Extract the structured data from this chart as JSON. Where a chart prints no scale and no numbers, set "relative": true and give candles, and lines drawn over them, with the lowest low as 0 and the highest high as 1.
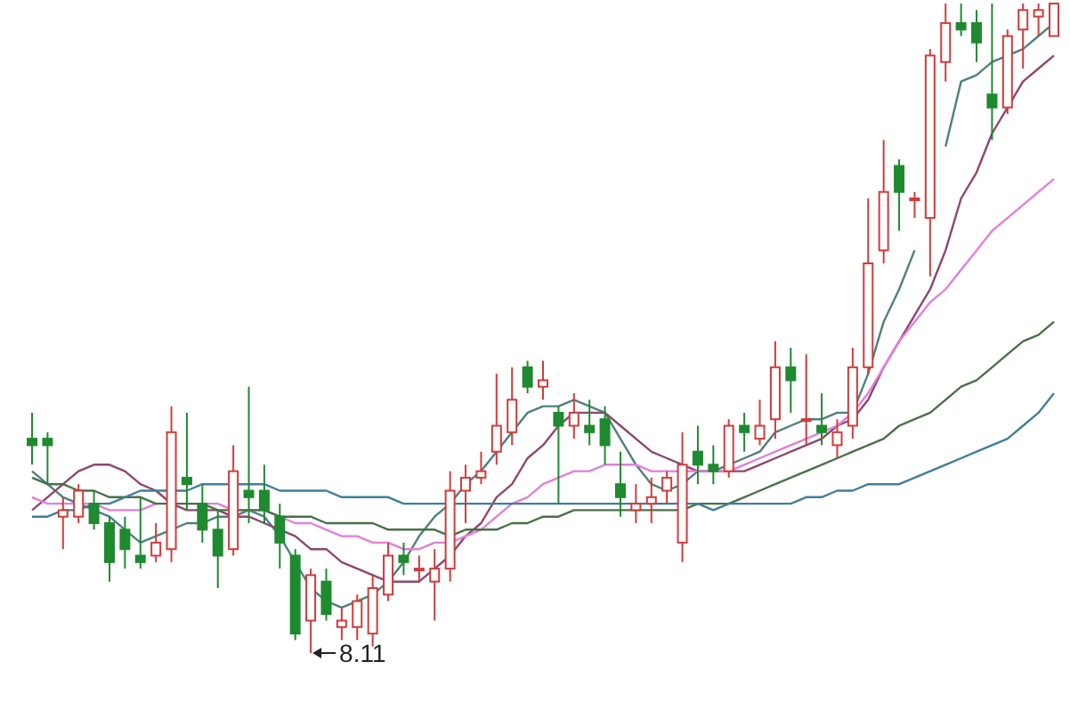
{
  "chart_data": {
    "type": "candlestick",
    "relative": true,
    "categories": [
      null,
      null,
      null,
      null,
      null,
      null,
      null,
      null,
      null,
      null,
      null,
      null,
      null,
      null,
      null,
      null,
      null,
      null,
      null,
      null,
      null,
      null,
      null,
      null,
      null,
      null,
      null,
      null,
      null,
      null,
      null,
      null,
      null,
      null,
      null,
      null,
      null,
      null,
      null,
      null,
      null,
      null,
      null,
      null,
      null,
      null,
      null,
      null,
      null,
      null,
      null,
      null,
      null,
      null,
      null,
      null,
      null,
      null,
      null,
      null,
      null,
      null,
      null,
      null,
      null,
      null,
      null
    ],
    "ohlc": [
      [
        0.33,
        0.37,
        0.29,
        0.32
      ],
      [
        0.33,
        0.34,
        0.26,
        0.32
      ],
      [
        0.21,
        0.24,
        0.16,
        0.22
      ],
      [
        0.21,
        0.26,
        0.2,
        0.25
      ],
      [
        0.23,
        0.25,
        0.19,
        0.2
      ],
      [
        0.2,
        0.21,
        0.11,
        0.14
      ],
      [
        0.19,
        0.21,
        0.13,
        0.16
      ],
      [
        0.15,
        0.24,
        0.13,
        0.14
      ],
      [
        0.15,
        0.2,
        0.14,
        0.17
      ],
      [
        0.16,
        0.38,
        0.14,
        0.34
      ],
      [
        0.27,
        0.37,
        0.22,
        0.26
      ],
      [
        0.23,
        0.26,
        0.17,
        0.19
      ],
      [
        0.19,
        0.22,
        0.1,
        0.15
      ],
      [
        0.16,
        0.32,
        0.15,
        0.28
      ],
      [
        0.25,
        0.41,
        0.2,
        0.24
      ],
      [
        0.25,
        0.29,
        0.2,
        0.22
      ],
      [
        0.21,
        0.23,
        0.13,
        0.17
      ],
      [
        0.15,
        0.16,
        0.02,
        0.03
      ],
      [
        0.05,
        0.13,
        0,
        0.12
      ],
      [
        0.11,
        0.13,
        0.05,
        0.06
      ],
      [
        0.04,
        0.07,
        0.02,
        0.05
      ],
      [
        0.04,
        0.09,
        0.02,
        0.08
      ],
      [
        0.03,
        0.12,
        0.01,
        0.1
      ],
      [
        0.09,
        0.17,
        0.08,
        0.15
      ],
      [
        0.15,
        0.17,
        0.12,
        0.14
      ],
      [
        0.13,
        0.15,
        0.11,
        0.13
      ],
      [
        0.11,
        0.16,
        0.05,
        0.13
      ],
      [
        0.13,
        0.28,
        0.11,
        0.25
      ],
      [
        0.25,
        0.29,
        0.2,
        0.27
      ],
      [
        0.27,
        0.31,
        0.26,
        0.28
      ],
      [
        0.31,
        0.43,
        0.29,
        0.35
      ],
      [
        0.34,
        0.44,
        0.32,
        0.39
      ],
      [
        0.44,
        0.45,
        0.4,
        0.41
      ],
      [
        0.41,
        0.45,
        0.39,
        0.42
      ],
      [
        0.37,
        0.38,
        0.23,
        0.35
      ],
      [
        0.35,
        0.4,
        0.33,
        0.37
      ],
      [
        0.35,
        0.39,
        0.32,
        0.34
      ],
      [
        0.36,
        0.38,
        0.29,
        0.32
      ],
      [
        0.26,
        0.31,
        0.21,
        0.24
      ],
      [
        0.22,
        0.26,
        0.2,
        0.23
      ],
      [
        0.23,
        0.27,
        0.2,
        0.24
      ],
      [
        0.25,
        0.28,
        0.23,
        0.27
      ],
      [
        0.17,
        0.34,
        0.14,
        0.29
      ],
      [
        0.31,
        0.35,
        0.26,
        0.29
      ],
      [
        0.29,
        0.32,
        0.26,
        0.28
      ],
      [
        0.28,
        0.36,
        0.27,
        0.35
      ],
      [
        0.35,
        0.37,
        0.31,
        0.34
      ],
      [
        0.33,
        0.39,
        0.32,
        0.35
      ],
      [
        0.36,
        0.48,
        0.33,
        0.44
      ],
      [
        0.44,
        0.47,
        0.37,
        0.42
      ],
      [
        0.36,
        0.46,
        0.32,
        0.36
      ],
      [
        0.35,
        0.4,
        0.32,
        0.34
      ],
      [
        0.32,
        0.36,
        0.3,
        0.34
      ],
      [
        0.35,
        0.47,
        0.33,
        0.44
      ],
      [
        0.44,
        0.7,
        0.43,
        0.6
      ],
      [
        0.62,
        0.79,
        0.6,
        0.71
      ],
      [
        0.75,
        0.76,
        0.65,
        0.71
      ],
      [
        0.7,
        0.71,
        0.67,
        0.7
      ],
      [
        0.67,
        0.93,
        0.58,
        0.92
      ],
      [
        0.91,
        1,
        0.88,
        0.97
      ],
      [
        0.97,
        1,
        0.95,
        0.96
      ],
      [
        0.97,
        0.99,
        0.91,
        0.94
      ],
      [
        0.86,
        1,
        0.79,
        0.84
      ],
      [
        0.84,
        0.96,
        0.83,
        0.95
      ],
      [
        0.96,
        1,
        0.9,
        0.99
      ],
      [
        0.98,
        1,
        0.95,
        0.99
      ],
      [
        0.95,
        1,
        0.95,
        1
      ]
    ],
    "series": [
      {
        "type": "line",
        "color": "#4f7f80",
        "values": [
          0.28,
          0.26,
          0.24,
          0.23,
          0.22,
          0.21,
          0.19,
          0.17,
          0.18,
          0.19,
          0.2,
          0.2,
          0.21,
          0.21,
          0.22,
          0.21,
          0.18,
          0.14,
          0.1,
          0.08,
          0.07,
          0.08,
          0.09,
          0.11,
          0.14,
          0.18,
          0.21,
          0.23,
          0.26,
          0.28,
          0.31,
          0.34,
          0.37,
          0.38,
          0.38,
          0.39,
          0.38,
          0.37,
          0.33,
          0.29,
          0.26,
          0.25,
          0.26,
          0.28,
          0.28,
          0.29,
          0.3,
          0.31,
          0.34,
          0.35,
          0.36,
          0.36,
          0.37,
          0.37,
          0.43,
          0.51,
          0.56,
          0.62,
          null,
          0.78,
          0.88,
          0.89,
          0.91,
          0.92,
          0.93,
          0.95,
          0.97
        ]
      },
      {
        "type": "line",
        "color": "#8e4670",
        "values": [
          0.22,
          0.24,
          0.26,
          0.28,
          0.29,
          0.29,
          0.28,
          0.26,
          0.25,
          0.23,
          0.22,
          0.22,
          0.22,
          0.21,
          0.21,
          0.2,
          0.19,
          0.18,
          0.16,
          0.16,
          0.14,
          0.13,
          0.12,
          0.11,
          0.11,
          0.11,
          0.13,
          0.15,
          0.18,
          0.2,
          0.24,
          0.26,
          0.3,
          0.32,
          0.35,
          0.37,
          0.37,
          0.37,
          0.35,
          0.33,
          0.31,
          0.3,
          0.29,
          0.28,
          0.28,
          0.28,
          0.28,
          0.29,
          0.3,
          0.31,
          0.32,
          0.33,
          0.35,
          0.36,
          0.39,
          0.44,
          0.48,
          0.52,
          0.56,
          0.62,
          0.7,
          0.74,
          0.8,
          0.84,
          0.88,
          0.9,
          0.92
        ]
      },
      {
        "type": "line",
        "color": "#e27fd8",
        "values": [
          0.24,
          0.23,
          0.23,
          0.23,
          0.23,
          0.22,
          0.22,
          0.22,
          0.23,
          null,
          0.23,
          0.23,
          0.23,
          0.22,
          0.22,
          0.22,
          0.21,
          0.2,
          0.2,
          0.19,
          0.18,
          0.18,
          0.17,
          0.17,
          0.16,
          0.16,
          0.17,
          0.17,
          0.18,
          0.19,
          0.21,
          0.23,
          0.24,
          0.26,
          0.27,
          0.28,
          0.28,
          0.29,
          0.29,
          0.29,
          0.28,
          0.28,
          0.28,
          0.28,
          0.28,
          0.28,
          0.29,
          0.3,
          0.31,
          0.32,
          0.33,
          0.34,
          0.35,
          0.37,
          0.4,
          0.44,
          0.48,
          0.51,
          0.54,
          0.56,
          0.59,
          0.62,
          0.65,
          0.67,
          0.69,
          0.71,
          0.73
        ]
      },
      {
        "type": "line",
        "color": "#4a7048",
        "values": [
          0.27,
          0.26,
          0.26,
          0.25,
          0.25,
          0.24,
          0.24,
          0.24,
          0.23,
          0.23,
          0.23,
          0.23,
          0.22,
          0.22,
          0.22,
          0.22,
          0.21,
          0.21,
          0.21,
          0.2,
          0.2,
          0.2,
          0.2,
          0.19,
          0.19,
          0.19,
          0.19,
          0.18,
          0.19,
          0.19,
          0.19,
          0.2,
          0.2,
          0.21,
          0.21,
          0.22,
          0.22,
          0.22,
          0.22,
          0.22,
          0.22,
          0.22,
          0.22,
          0.23,
          0.23,
          0.23,
          0.24,
          0.25,
          0.26,
          0.27,
          0.28,
          0.29,
          0.3,
          0.31,
          0.32,
          0.33,
          0.35,
          0.36,
          0.37,
          0.39,
          0.41,
          0.42,
          0.44,
          0.46,
          0.48,
          0.49,
          0.51
        ]
      },
      {
        "type": "line",
        "color": "#3f7f9a",
        "values": [
          0.21,
          0.21,
          0.22,
          0.22,
          0.23,
          0.23,
          0.24,
          0.25,
          0.25,
          0.25,
          0.25,
          0.26,
          0.26,
          0.26,
          0.26,
          0.26,
          0.25,
          0.25,
          0.25,
          0.25,
          0.24,
          0.24,
          0.24,
          0.24,
          0.23,
          0.23,
          0.23,
          0.23,
          0.23,
          0.23,
          0.23,
          0.23,
          0.23,
          0.23,
          0.23,
          0.23,
          0.23,
          0.23,
          0.23,
          0.23,
          0.23,
          0.23,
          0.23,
          0.23,
          0.22,
          0.23,
          0.23,
          0.23,
          0.23,
          0.23,
          0.24,
          0.24,
          0.25,
          0.25,
          0.26,
          0.26,
          0.26,
          0.27,
          0.28,
          0.29,
          0.3,
          0.31,
          0.32,
          0.33,
          0.35,
          0.37,
          0.4
        ]
      }
    ],
    "annotations": [
      "8.11"
    ]
  }
}
